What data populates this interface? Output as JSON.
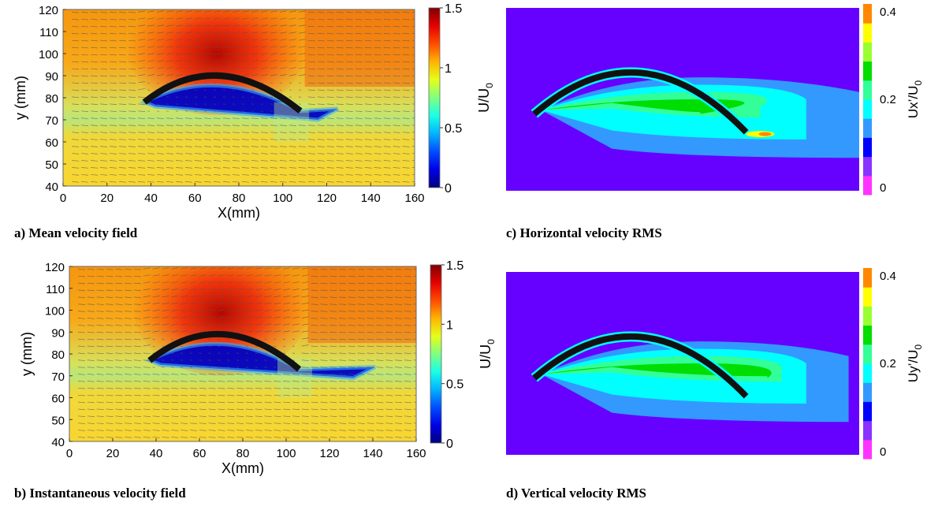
{
  "chart_data": [
    {
      "id": "a",
      "type": "heatmap",
      "caption": "a) Mean velocity field",
      "xlabel": "X(mm)",
      "ylabel": "y (mm)",
      "xlim": [
        0,
        160
      ],
      "ylim": [
        40,
        120
      ],
      "xticks": [
        "0",
        "20",
        "40",
        "60",
        "80",
        "100",
        "120",
        "140",
        "160"
      ],
      "yticks": [
        "40",
        "50",
        "60",
        "70",
        "80",
        "90",
        "100",
        "110",
        "120"
      ],
      "colorbar": {
        "label": "U/U",
        "label_sub": "0",
        "ticks": [
          "0",
          "0.5",
          "1",
          "1.5"
        ],
        "range": [
          0,
          1.5
        ],
        "colormap": "jet"
      },
      "obstacle_arc": {
        "x_start": 37,
        "x_end": 108,
        "y_base": 78,
        "y_peak": 91,
        "x_peak": 70
      },
      "freestream_value": 0.95,
      "upper_value": 1.1,
      "max_value": 1.45,
      "wake_value": 0.1
    },
    {
      "id": "b",
      "type": "heatmap",
      "caption": "b) Instantaneous velocity field",
      "xlabel": "X(mm)",
      "ylabel": "y (mm)",
      "xlim": [
        0,
        160
      ],
      "ylim": [
        40,
        120
      ],
      "xticks": [
        "0",
        "20",
        "40",
        "60",
        "80",
        "100",
        "120",
        "140",
        "160"
      ],
      "yticks": [
        "40",
        "50",
        "60",
        "70",
        "80",
        "90",
        "100",
        "110",
        "120"
      ],
      "colorbar": {
        "label": "U/U",
        "label_sub": "0",
        "ticks": [
          "0",
          "0.5",
          "1",
          "1.5"
        ],
        "range": [
          0,
          1.5
        ],
        "colormap": "jet"
      },
      "obstacle_arc": {
        "x_start": 37,
        "x_end": 106,
        "y_base": 77,
        "y_peak": 90,
        "x_peak": 70
      },
      "freestream_value": 0.95,
      "upper_value": 1.1,
      "max_value": 1.45,
      "wake_value": 0.1
    },
    {
      "id": "c",
      "type": "heatmap",
      "caption": "c) Horizontal velocity RMS",
      "colorbar": {
        "label": "Ux’/U",
        "label_sub": "0",
        "ticks": [
          "0",
          "0.2",
          "0.4"
        ],
        "range": [
          0,
          0.4
        ],
        "levels": [
          "#ff33ff",
          "#8833ff",
          "#0000ff",
          "#3399ff",
          "#00ffff",
          "#33ff99",
          "#00dd00",
          "#99ff33",
          "#ffff00",
          "#ff8800"
        ]
      },
      "background_value": 0.07,
      "obstacle_arc": {
        "x_start": 0.08,
        "x_end": 0.68,
        "y_base": 0.58,
        "y_peak": 0.3
      }
    },
    {
      "id": "d",
      "type": "heatmap",
      "caption": "d) Vertical velocity RMS",
      "colorbar": {
        "label": "Uy’/U",
        "label_sub": "0",
        "ticks": [
          "0",
          "0.2",
          "0.4"
        ],
        "range": [
          0,
          0.4
        ],
        "levels": [
          "#ff33ff",
          "#8833ff",
          "#0000ff",
          "#3399ff",
          "#00ffff",
          "#33ff99",
          "#00dd00",
          "#99ff33",
          "#ffff00",
          "#ff8800"
        ]
      },
      "background_value": 0.07,
      "obstacle_arc": {
        "x_start": 0.08,
        "x_end": 0.68,
        "y_base": 0.58,
        "y_peak": 0.3
      }
    }
  ]
}
